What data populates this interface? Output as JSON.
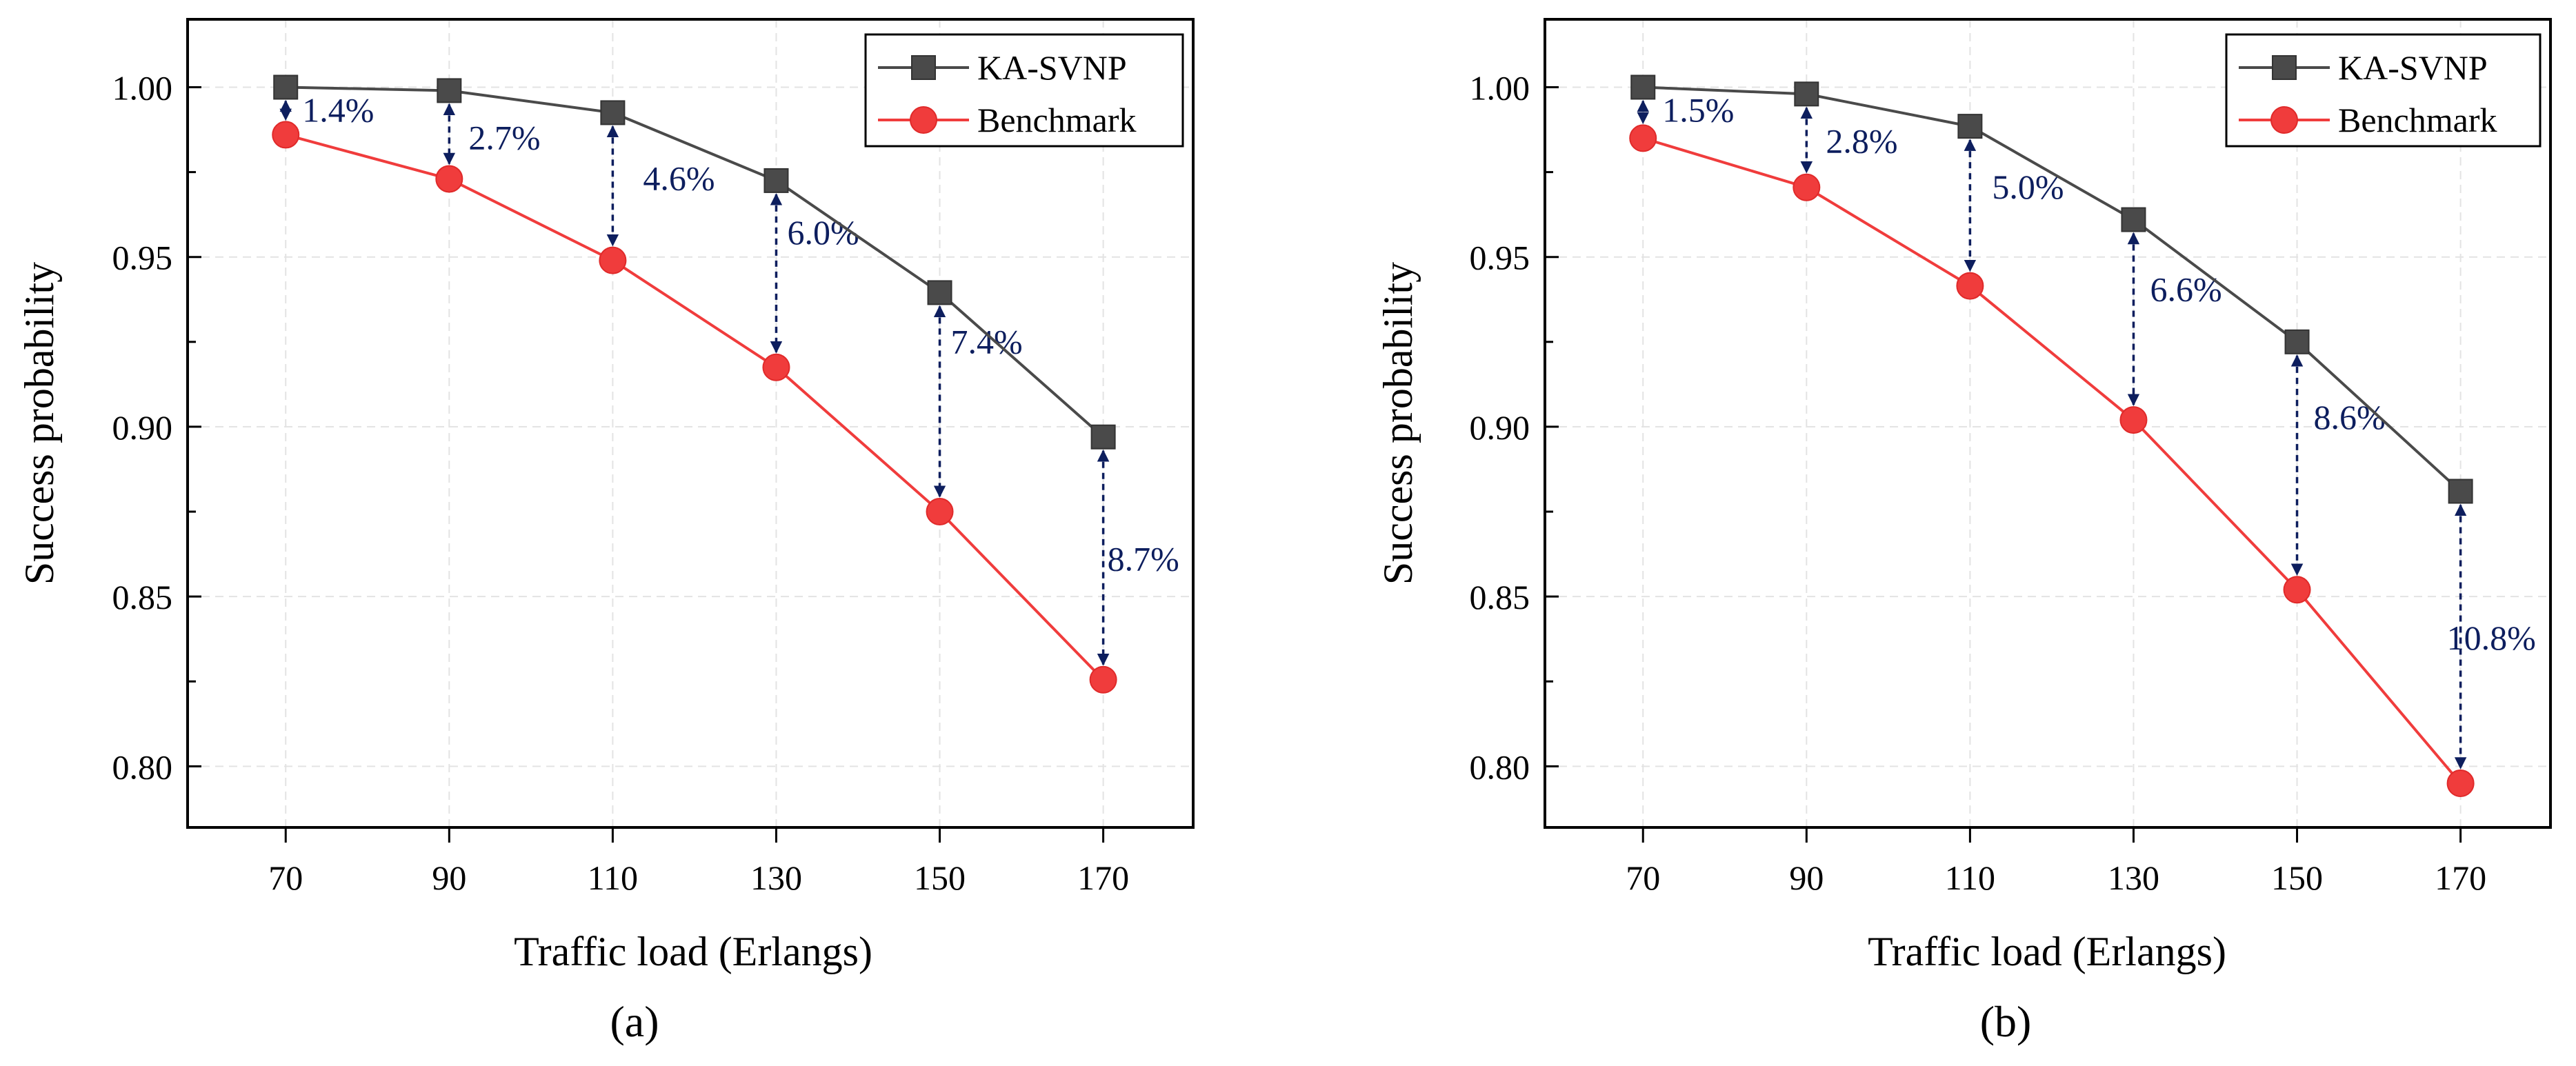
{
  "chart_data": [
    {
      "type": "line",
      "caption": "(a)",
      "categories": [
        70,
        90,
        110,
        130,
        150,
        170
      ],
      "series": [
        {
          "name": "KA-SVNP",
          "color": "#4a4a4a",
          "marker": "square",
          "values": [
            1.0,
            0.999,
            0.9925,
            0.9725,
            0.9395,
            0.897
          ]
        },
        {
          "name": "Benchmark",
          "color": "#f03c3c",
          "marker": "circle",
          "values": [
            0.986,
            0.973,
            0.949,
            0.9175,
            0.875,
            0.8255
          ]
        }
      ],
      "annotations": [
        "1.4%",
        "2.7%",
        "4.6%",
        "6.0%",
        "7.4%",
        "8.7%"
      ],
      "xlabel": "Traffic load (Erlangs)",
      "ylabel": "Success probability",
      "xticks": [
        "70",
        "90",
        "110",
        "130",
        "150",
        "170"
      ],
      "yticks": [
        "0.80",
        "0.85",
        "0.90",
        "0.95",
        "1.00"
      ],
      "ylim": [
        0.782,
        1.02
      ],
      "xlim": [
        58,
        181
      ],
      "grid": true,
      "legend": "top-right"
    },
    {
      "type": "line",
      "caption": "(b)",
      "categories": [
        70,
        90,
        110,
        130,
        150,
        170
      ],
      "series": [
        {
          "name": "KA-SVNP",
          "color": "#4a4a4a",
          "marker": "square",
          "values": [
            1.0,
            0.998,
            0.9885,
            0.961,
            0.925,
            0.881
          ]
        },
        {
          "name": "Benchmark",
          "color": "#f03c3c",
          "marker": "circle",
          "values": [
            0.985,
            0.9705,
            0.9415,
            0.902,
            0.852,
            0.795
          ]
        }
      ],
      "annotations": [
        "1.5%",
        "2.8%",
        "5.0%",
        "6.6%",
        "8.6%",
        "10.8%"
      ],
      "xlabel": "Traffic load (Erlangs)",
      "ylabel": "Success probability",
      "xticks": [
        "70",
        "90",
        "110",
        "130",
        "150",
        "170"
      ],
      "yticks": [
        "0.80",
        "0.85",
        "0.90",
        "0.95",
        "1.00"
      ],
      "ylim": [
        0.782,
        1.02
      ],
      "xlim": [
        58,
        181
      ],
      "grid": true,
      "legend": "top-right"
    }
  ]
}
